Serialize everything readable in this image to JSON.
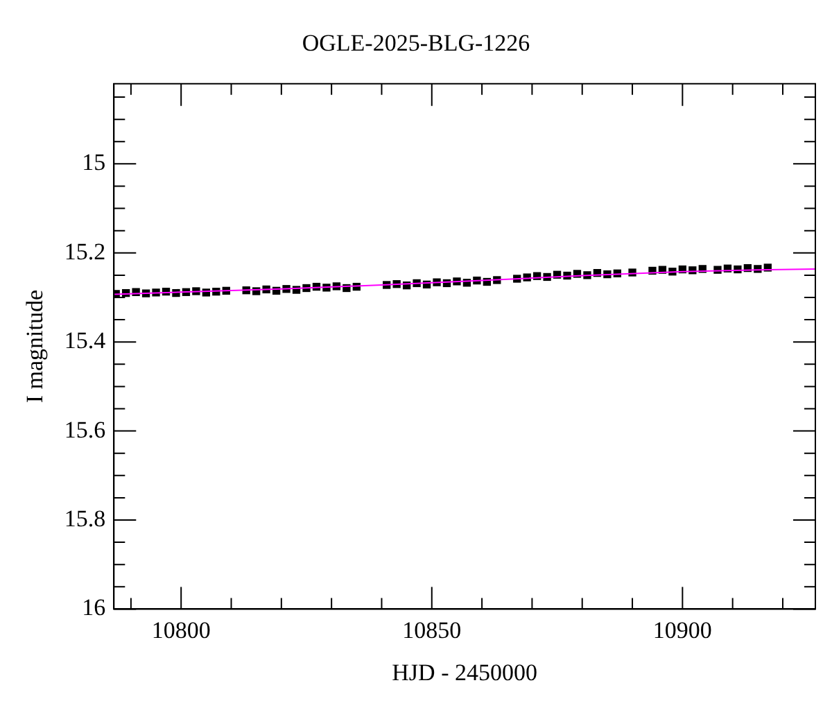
{
  "chart_data": {
    "type": "scatter",
    "title": "OGLE-2025-BLG-1226",
    "xlabel": "HJD - 2450000",
    "ylabel": "I magnitude",
    "xlim": [
      10786.6,
      10926.5
    ],
    "ylim": [
      16,
      14.82
    ],
    "xticks": [
      {
        "value": 10790,
        "label": null
      },
      10800,
      {
        "value": 10810,
        "label": null
      },
      {
        "value": 10820,
        "label": null
      },
      {
        "value": 10830,
        "label": null
      },
      {
        "value": 10840,
        "label": null
      },
      10850,
      {
        "value": 10860,
        "label": null
      },
      {
        "value": 10870,
        "label": null
      },
      {
        "value": 10880,
        "label": null
      },
      {
        "value": 10890,
        "label": null
      },
      10900,
      {
        "value": 10910,
        "label": null
      },
      {
        "value": 10920,
        "label": null
      }
    ],
    "yticks": [
      {
        "value": 14.85,
        "label": null
      },
      {
        "value": 14.9,
        "label": null
      },
      {
        "value": 14.95,
        "label": null
      },
      15,
      {
        "value": 15.05,
        "label": null
      },
      {
        "value": 15.1,
        "label": null
      },
      {
        "value": 15.15,
        "label": null
      },
      15.2,
      {
        "value": 15.25,
        "label": null
      },
      {
        "value": 15.3,
        "label": null
      },
      {
        "value": 15.35,
        "label": null
      },
      15.4,
      {
        "value": 15.45,
        "label": null
      },
      {
        "value": 15.5,
        "label": null
      },
      {
        "value": 15.55,
        "label": null
      },
      15.6,
      {
        "value": 15.65,
        "label": null
      },
      {
        "value": 15.7,
        "label": null
      },
      {
        "value": 15.75,
        "label": null
      },
      15.8,
      {
        "value": 15.85,
        "label": null
      },
      {
        "value": 15.9,
        "label": null
      },
      {
        "value": 15.95,
        "label": null
      },
      16
    ],
    "grid": false,
    "legend": false,
    "series": [
      {
        "marker": "square",
        "color": "#000000",
        "x": [
          10787,
          10789,
          10791,
          10793,
          10795,
          10797,
          10799,
          10801,
          10803,
          10805,
          10807,
          10809,
          10813,
          10815,
          10817,
          10819,
          10821,
          10823,
          10825,
          10827,
          10829,
          10831,
          10833,
          10835,
          10841,
          10843,
          10845,
          10847,
          10849,
          10851,
          10853,
          10855,
          10857,
          10859,
          10861,
          10863,
          10867,
          10869,
          10871,
          10873,
          10875,
          10877,
          10879,
          10881,
          10883,
          10885,
          10887,
          10890,
          10894,
          10896,
          10898,
          10900,
          10902,
          10904,
          10907,
          10909,
          10911,
          10913,
          10915,
          10917
        ],
        "values": [
          15.292,
          15.29,
          15.288,
          15.291,
          15.289,
          15.287,
          15.29,
          15.288,
          15.286,
          15.289,
          15.287,
          15.285,
          15.284,
          15.286,
          15.282,
          15.285,
          15.281,
          15.283,
          15.279,
          15.276,
          15.278,
          15.275,
          15.279,
          15.276,
          15.272,
          15.27,
          15.273,
          15.268,
          15.271,
          15.266,
          15.268,
          15.264,
          15.267,
          15.262,
          15.265,
          15.261,
          15.258,
          15.255,
          15.252,
          15.254,
          15.249,
          15.251,
          15.247,
          15.25,
          15.245,
          15.248,
          15.246,
          15.244,
          15.24,
          15.238,
          15.242,
          15.237,
          15.239,
          15.236,
          15.238,
          15.235,
          15.237,
          15.234,
          15.236,
          15.233
        ]
      },
      {
        "type": "line",
        "color": "#ff00ff",
        "x": [
          10786.6,
          10800,
          10820,
          10840,
          10860,
          10880,
          10900,
          10915,
          10926.5
        ],
        "values": [
          15.293,
          15.288,
          15.281,
          15.272,
          15.262,
          15.251,
          15.242,
          15.238,
          15.236
        ]
      }
    ]
  }
}
